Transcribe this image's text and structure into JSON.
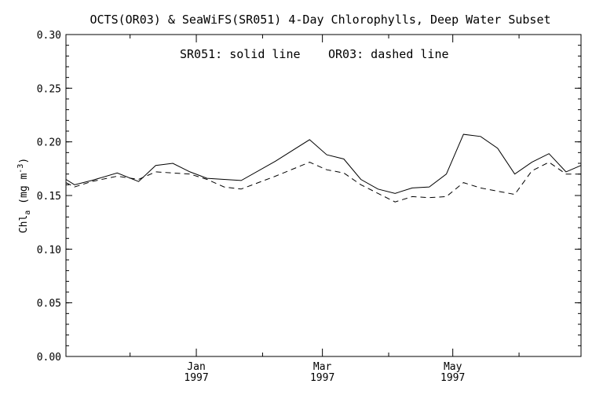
{
  "chart_data": {
    "type": "line",
    "title": "OCTS(OR03) & SeaWiFS(SR051) 4-Day Chlorophylls, Deep Water Subset",
    "annotation": {
      "solid": "SR051: solid line",
      "dashed": "OR03: dashed line"
    },
    "ylabel": {
      "main": "Chl",
      "subscript": "a",
      "unit_open": " (mg m",
      "unit_sup": "-3",
      "unit_close": ")"
    },
    "xlabel": "",
    "ylim": [
      0.0,
      0.3
    ],
    "yticks": [
      0.0,
      0.05,
      0.1,
      0.15,
      0.2,
      0.25,
      0.3
    ],
    "ytick_labels": [
      "0.00",
      "0.05",
      "0.10",
      "0.15",
      "0.20",
      "0.25",
      "0.30"
    ],
    "xlim": [
      "1996-11-01",
      "1997-06-30"
    ],
    "xticks_major": [
      {
        "date": "1997-01-01",
        "label": "Jan",
        "year": "1997"
      },
      {
        "date": "1997-03-01",
        "label": "Mar",
        "year": "1997"
      },
      {
        "date": "1997-05-01",
        "label": "May",
        "year": "1997"
      }
    ],
    "xticks_minor": [
      "1996-12-01",
      "1997-02-01",
      "1997-04-01",
      "1997-06-01"
    ],
    "grid": false,
    "series": [
      {
        "name": "SR051",
        "linestyle": "solid",
        "x": [
          "1996-11-01",
          "1996-11-05",
          "1996-11-13",
          "1996-11-25",
          "1996-12-05",
          "1996-12-13",
          "1996-12-21",
          "1996-12-29",
          "1997-01-06",
          "1997-01-14",
          "1997-01-22",
          "1997-02-07",
          "1997-02-23",
          "1997-03-03",
          "1997-03-11",
          "1997-03-19",
          "1997-03-27",
          "1997-04-04",
          "1997-04-12",
          "1997-04-20",
          "1997-04-28",
          "1997-05-06",
          "1997-05-14",
          "1997-05-22",
          "1997-05-30",
          "1997-06-07",
          "1997-06-15",
          "1997-06-23",
          "1997-06-30"
        ],
        "values": [
          0.165,
          0.16,
          0.164,
          0.171,
          0.163,
          0.178,
          0.18,
          0.172,
          0.166,
          0.165,
          0.164,
          0.182,
          0.202,
          0.188,
          0.184,
          0.165,
          0.156,
          0.152,
          0.157,
          0.158,
          0.17,
          0.207,
          0.205,
          0.194,
          0.17,
          0.181,
          0.189,
          0.172,
          0.178
        ]
      },
      {
        "name": "OR03",
        "linestyle": "dashed",
        "x": [
          "1996-11-01",
          "1996-11-05",
          "1996-11-13",
          "1996-11-25",
          "1996-12-05",
          "1996-12-13",
          "1996-12-21",
          "1996-12-29",
          "1997-01-06",
          "1997-01-14",
          "1997-01-22",
          "1997-02-07",
          "1997-02-23",
          "1997-03-03",
          "1997-03-11",
          "1997-03-19",
          "1997-03-27",
          "1997-04-04",
          "1997-04-12",
          "1997-04-20",
          "1997-04-28",
          "1997-05-06",
          "1997-05-14",
          "1997-05-22",
          "1997-05-30",
          "1997-06-07",
          "1997-06-15",
          "1997-06-23",
          "1997-06-30"
        ],
        "values": [
          0.162,
          0.158,
          0.163,
          0.168,
          0.165,
          0.172,
          0.171,
          0.17,
          0.165,
          0.158,
          0.156,
          0.168,
          0.181,
          0.174,
          0.171,
          0.16,
          0.152,
          0.144,
          0.149,
          0.148,
          0.149,
          0.162,
          0.157,
          0.154,
          0.151,
          0.173,
          0.181,
          0.17,
          0.17
        ]
      }
    ]
  }
}
